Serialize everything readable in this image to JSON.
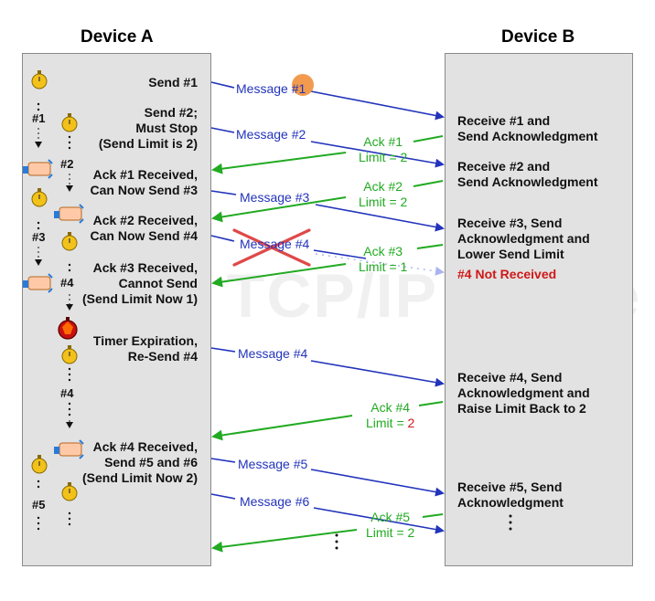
{
  "devices": {
    "a": "Device A",
    "b": "Device B"
  },
  "watermark": "The TCP/IP Guide",
  "a_labels": {
    "send1": "Send #1",
    "send2": "Send #2;\nMust Stop\n(Send Limit is 2)",
    "ack1": "Ack #1 Received,\nCan Now Send #3",
    "ack2": "Ack #2 Received,\nCan Now Send #4",
    "ack3": "Ack #3 Received,\nCannot Send\n(Send Limit Now 1)",
    "timer": "Timer Expiration,\nRe-Send #4",
    "ack4": "Ack #4 Received,\nSend #5 and #6\n(Send Limit Now 2)"
  },
  "b_labels": {
    "r1": "Receive #1 and\nSend Acknowledgment",
    "r2": "Receive #2 and\nSend Acknowledgment",
    "r3": "Receive #3, Send\nAcknowledgment and\nLower Send Limit",
    "r3lost": "#4 Not Received",
    "r4": "Receive #4, Send\nAcknowledgment and\nRaise Limit Back to 2",
    "r5": "Receive #5, Send\nAcknowledgment"
  },
  "messages": {
    "m1": "Message #1",
    "m2": "Message #2",
    "m3": "Message #3",
    "m4lost": "Message #4",
    "m4": "Message #4",
    "m5": "Message #5",
    "m6": "Message #6"
  },
  "acks": {
    "a1": "Ack #1",
    "a1lim": "Limit = 2",
    "a2": "Ack #2",
    "a2lim": "Limit = 2",
    "a3": "Ack #3",
    "a3lim": "Limit = 1",
    "a4": "Ack #4",
    "a4lim_prefix": "Limit = ",
    "a4lim_value": "2",
    "a5": "Ack #5",
    "a5lim": "Limit = 2"
  },
  "tags": {
    "t1": "#1",
    "t2": "#2",
    "t3": "#3",
    "t4": "#4",
    "t4b": "#4",
    "t5": "#5"
  },
  "colors": {
    "message": "#2233bb",
    "ack": "#22aa22",
    "lost": "#d01818",
    "panel": "#e2e2e2"
  }
}
